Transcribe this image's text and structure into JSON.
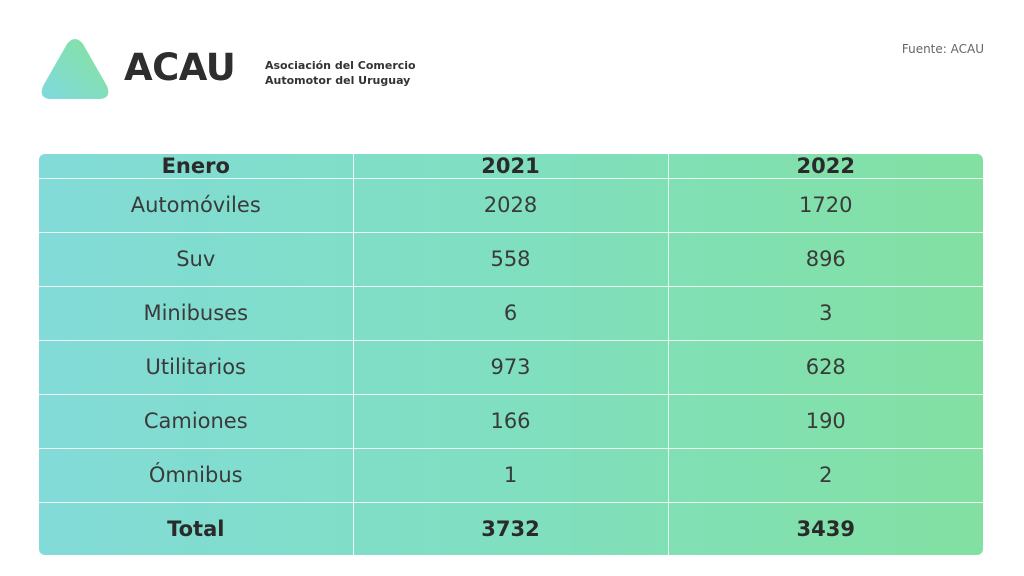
{
  "header": {
    "brand": "ACAU",
    "tagline_line1": "Asociación del Comercio",
    "tagline_line2": "Automotor del Uruguay",
    "source": "Fuente: ACAU"
  },
  "colors": {
    "logo_gradient_start": "#7fd9e0",
    "logo_gradient_end": "#86e39a",
    "table_gradient_start": "#82dbd8",
    "table_gradient_end": "#82e0a2"
  },
  "table": {
    "headers": [
      "Enero",
      "2021",
      "2022"
    ],
    "rows": [
      [
        "Automóviles",
        "2028",
        "1720"
      ],
      [
        "Suv",
        "558",
        "896"
      ],
      [
        "Minibuses",
        "6",
        "3"
      ],
      [
        "Utilitarios",
        "973",
        "628"
      ],
      [
        "Camiones",
        "166",
        "190"
      ],
      [
        "Ómnibus",
        "1",
        "2"
      ]
    ],
    "total": [
      "Total",
      "3732",
      "3439"
    ]
  }
}
